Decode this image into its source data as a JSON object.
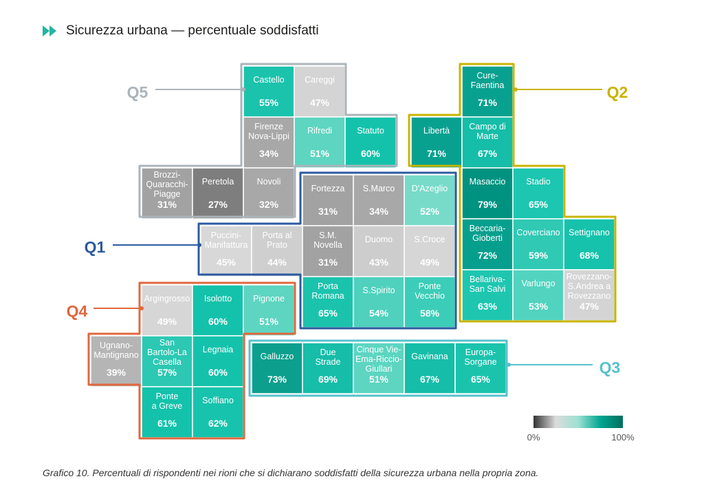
{
  "title": "Sicurezza urbana — percentuale soddisfatti",
  "caption": "Grafico 10. Percentuali di rispondenti nei rioni che si dichiarano soddisfatti della sicurezza urbana nella propria zona.",
  "legend": {
    "min_label": "0%",
    "max_label": "100%",
    "gradient": [
      "#333333",
      "#dcdcdc",
      "#9ce0d2",
      "#00a591",
      "#006e5c"
    ]
  },
  "quarters": [
    {
      "id": "Q1",
      "label": "Q1",
      "color": "#2c5aa0"
    },
    {
      "id": "Q2",
      "label": "Q2",
      "color": "#c8b400"
    },
    {
      "id": "Q3",
      "label": "Q3",
      "color": "#56c2cc"
    },
    {
      "id": "Q4",
      "label": "Q4",
      "color": "#e0673e"
    },
    {
      "id": "Q5",
      "label": "Q5",
      "color": "#aab4ba"
    }
  ],
  "chart_data": {
    "type": "heatmap",
    "value_unit": "%",
    "districts": [
      {
        "q": "Q5",
        "name": [
          "Castello"
        ],
        "value": 55,
        "fill": "#1bc3ad"
      },
      {
        "q": "Q5",
        "name": [
          "Careggi"
        ],
        "value": 47,
        "fill": "#d4d4d4"
      },
      {
        "q": "Q5",
        "name": [
          "Firenze",
          "Nova-Lippi"
        ],
        "value": 34,
        "fill": "#a8a8a8"
      },
      {
        "q": "Q5",
        "name": [
          "Rifredi"
        ],
        "value": 51,
        "fill": "#5dd5c1"
      },
      {
        "q": "Q5",
        "name": [
          "Statuto"
        ],
        "value": 60,
        "fill": "#14c2ab"
      },
      {
        "q": "Q5",
        "name": [
          "Brozzi-",
          "Quaracchi-",
          "Piagge"
        ],
        "value": 31,
        "fill": "#a2a2a2"
      },
      {
        "q": "Q5",
        "name": [
          "Peretola"
        ],
        "value": 27,
        "fill": "#7e7e7e"
      },
      {
        "q": "Q5",
        "name": [
          "Novoli"
        ],
        "value": 32,
        "fill": "#a8a8a8"
      },
      {
        "q": "Q2",
        "name": [
          "Cure-",
          "Faentina"
        ],
        "value": 71,
        "fill": "#08a190"
      },
      {
        "q": "Q2",
        "name": [
          "Libertà"
        ],
        "value": 71,
        "fill": "#08a190"
      },
      {
        "q": "Q2",
        "name": [
          "Campo di",
          "Marte"
        ],
        "value": 67,
        "fill": "#16bda8"
      },
      {
        "q": "Q2",
        "name": [
          "Masaccio"
        ],
        "value": 79,
        "fill": "#009280"
      },
      {
        "q": "Q2",
        "name": [
          "Stadio"
        ],
        "value": 65,
        "fill": "#1cc6b0"
      },
      {
        "q": "Q2",
        "name": [
          "Beccaria-",
          "Gioberti"
        ],
        "value": 72,
        "fill": "#069f8d"
      },
      {
        "q": "Q2",
        "name": [
          "Coverciano"
        ],
        "value": 59,
        "fill": "#30c9b4"
      },
      {
        "q": "Q2",
        "name": [
          "Settignano"
        ],
        "value": 68,
        "fill": "#16c2ac"
      },
      {
        "q": "Q2",
        "name": [
          "Bellariva-",
          "San Salvi"
        ],
        "value": 63,
        "fill": "#1ec6b0"
      },
      {
        "q": "Q2",
        "name": [
          "Varlungo"
        ],
        "value": 53,
        "fill": "#52d3bf"
      },
      {
        "q": "Q2",
        "name": [
          "Rovezzano-",
          "S.Andrea a",
          "Rovezzano"
        ],
        "value": 47,
        "fill": "#d4d4d4"
      },
      {
        "q": "Q1",
        "name": [
          "Fortezza"
        ],
        "value": 31,
        "fill": "#a2a2a2"
      },
      {
        "q": "Q1",
        "name": [
          "S.Marco"
        ],
        "value": 34,
        "fill": "#a8a8a8"
      },
      {
        "q": "Q1",
        "name": [
          "D'Azeglio"
        ],
        "value": 52,
        "fill": "#78dbc9"
      },
      {
        "q": "Q1",
        "name": [
          "Puccini-",
          "Manifattura"
        ],
        "value": 45,
        "fill": "#d8d8d8"
      },
      {
        "q": "Q1",
        "name": [
          "Porta al",
          "Prato"
        ],
        "value": 44,
        "fill": "#cfcfcf"
      },
      {
        "q": "Q1",
        "name": [
          "S.M.",
          "Novella"
        ],
        "value": 31,
        "fill": "#a2a2a2"
      },
      {
        "q": "Q1",
        "name": [
          "Duomo"
        ],
        "value": 43,
        "fill": "#cdcdcd"
      },
      {
        "q": "Q1",
        "name": [
          "S.Croce"
        ],
        "value": 49,
        "fill": "#d6d6d6"
      },
      {
        "q": "Q1",
        "name": [
          "Porta",
          "Romana"
        ],
        "value": 65,
        "fill": "#1bc3ad"
      },
      {
        "q": "Q1",
        "name": [
          "S.Spirito"
        ],
        "value": 54,
        "fill": "#4fd1bd"
      },
      {
        "q": "Q1",
        "name": [
          "Ponte",
          "Vecchio"
        ],
        "value": 58,
        "fill": "#3ccdb8"
      },
      {
        "q": "Q4",
        "name": [
          "Argingrosso"
        ],
        "value": 49,
        "fill": "#d6d6d6"
      },
      {
        "q": "Q4",
        "name": [
          "Isolotto"
        ],
        "value": 60,
        "fill": "#14c2ab"
      },
      {
        "q": "Q4",
        "name": [
          "Pignone"
        ],
        "value": 51,
        "fill": "#5dd5c1"
      },
      {
        "q": "Q4",
        "name": [
          "Ugnano-",
          "Mantignano"
        ],
        "value": 39,
        "fill": "#b5b5b5"
      },
      {
        "q": "Q4",
        "name": [
          "San",
          "Bartolo-La",
          "Casella"
        ],
        "value": 57,
        "fill": "#2cc8b3"
      },
      {
        "q": "Q4",
        "name": [
          "Legnaia"
        ],
        "value": 60,
        "fill": "#14c2ab"
      },
      {
        "q": "Q4",
        "name": [
          "Ponte",
          "a Greve"
        ],
        "value": 61,
        "fill": "#14c2ab"
      },
      {
        "q": "Q4",
        "name": [
          "Soffiano"
        ],
        "value": 62,
        "fill": "#18c3ad"
      },
      {
        "q": "Q3",
        "name": [
          "Galluzzo"
        ],
        "value": 73,
        "fill": "#0c9f8d"
      },
      {
        "q": "Q3",
        "name": [
          "Due",
          "Strade"
        ],
        "value": 69,
        "fill": "#16bda8"
      },
      {
        "q": "Q3",
        "name": [
          "Cinque Vie-",
          "Ema-Riccio-",
          "Giullari"
        ],
        "value": 51,
        "fill": "#5dd5c1"
      },
      {
        "q": "Q3",
        "name": [
          "Gavinana"
        ],
        "value": 67,
        "fill": "#16bda8"
      },
      {
        "q": "Q3",
        "name": [
          "Europa-",
          "Sorgane"
        ],
        "value": 65,
        "fill": "#1bc3ad"
      }
    ]
  }
}
